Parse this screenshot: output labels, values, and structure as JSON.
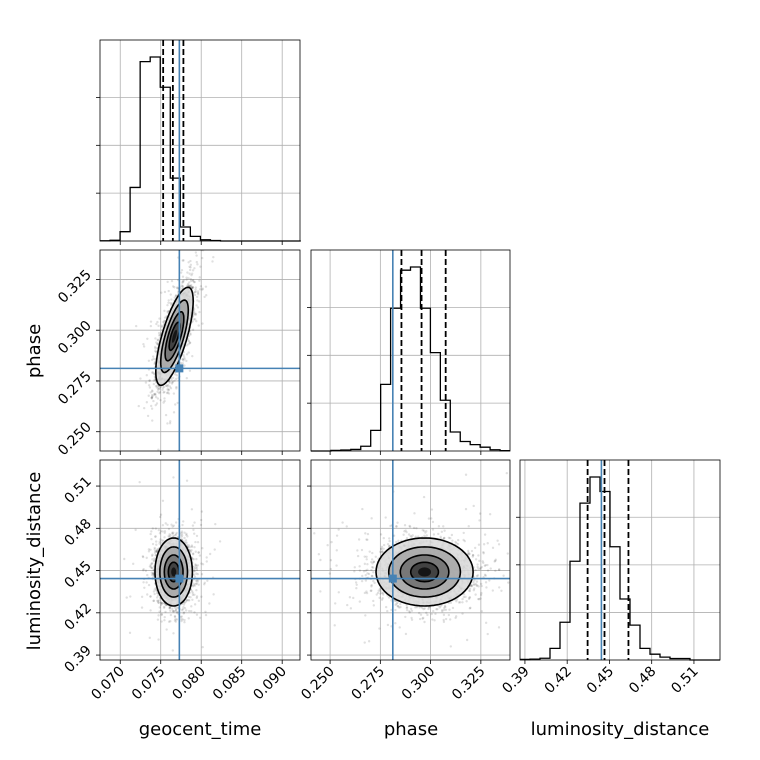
{
  "chart_data": {
    "type": "corner",
    "parameters": [
      "geocent_time",
      "phase",
      "luminosity_distance"
    ],
    "truths": {
      "geocent_time": 0.0773,
      "phase": 0.2812,
      "luminosity_distance": 0.4443
    },
    "colors": {
      "truth": "#4682b4",
      "hist": "#000000",
      "grid": "#b0b0b0"
    },
    "grid": true,
    "axes": {
      "geocent_time": {
        "label": "geocent_time",
        "range": [
          0.0675,
          0.0922
        ],
        "ticks": [
          0.07,
          0.075,
          0.08,
          0.085,
          0.09
        ],
        "tick_labels": [
          "0.070",
          "0.075",
          "0.080",
          "0.085",
          "0.090"
        ]
      },
      "phase": {
        "label": "phase",
        "range": [
          0.2405,
          0.3395
        ],
        "ticks": [
          0.25,
          0.275,
          0.3,
          0.325
        ],
        "tick_labels": [
          "0.250",
          "0.275",
          "0.300",
          "0.325"
        ]
      },
      "luminosity_distance": {
        "label": "luminosity_distance",
        "range": [
          0.3865,
          0.5285
        ],
        "ticks": [
          0.39,
          0.42,
          0.45,
          0.48,
          0.51
        ],
        "tick_labels": [
          "0.39",
          "0.42",
          "0.45",
          "0.48",
          "0.51"
        ]
      }
    },
    "histograms": {
      "geocent_time": {
        "quantiles": [
          0.0753,
          0.0765,
          0.0778
        ],
        "bins_start": 0.0675,
        "bin_width": 0.00124,
        "counts": [
          1,
          3,
          40,
          230,
          770,
          790,
          660,
          270,
          60,
          20,
          5,
          2,
          0,
          0,
          0,
          0,
          0,
          0,
          0,
          0
        ]
      },
      "phase": {
        "quantiles": [
          0.2855,
          0.2955,
          0.3075
        ],
        "bins_start": 0.2405,
        "bin_width": 0.00495,
        "counts": [
          0,
          0,
          2,
          3,
          5,
          15,
          65,
          210,
          450,
          570,
          580,
          450,
          310,
          160,
          60,
          30,
          20,
          12,
          4,
          1
        ]
      },
      "luminosity_distance": {
        "quantiles": [
          0.4345,
          0.4465,
          0.4635
        ],
        "bins_start": 0.3865,
        "bin_width": 0.0071,
        "counts": [
          2,
          3,
          6,
          40,
          130,
          340,
          540,
          630,
          580,
          390,
          210,
          120,
          40,
          20,
          10,
          5,
          5,
          0,
          0,
          0
        ]
      }
    },
    "posterior_2d": {
      "phase_vs_geocent_time": {
        "mean": [
          0.0767,
          0.297
        ],
        "std": [
          0.0011,
          0.0115
        ],
        "correlation": 0.72,
        "samples": 2500
      },
      "luminosity_distance_vs_geocent_time": {
        "mean": [
          0.0766,
          0.449
        ],
        "std": [
          0.0011,
          0.0115
        ],
        "correlation": 0.0,
        "samples": 2500
      },
      "luminosity_distance_vs_phase": {
        "mean": [
          0.297,
          0.449
        ],
        "std": [
          0.0115,
          0.0115
        ],
        "correlation": 0.0,
        "samples": 2500
      }
    },
    "contour_levels": [
      0.118,
      0.393,
      0.675,
      0.865
    ]
  }
}
